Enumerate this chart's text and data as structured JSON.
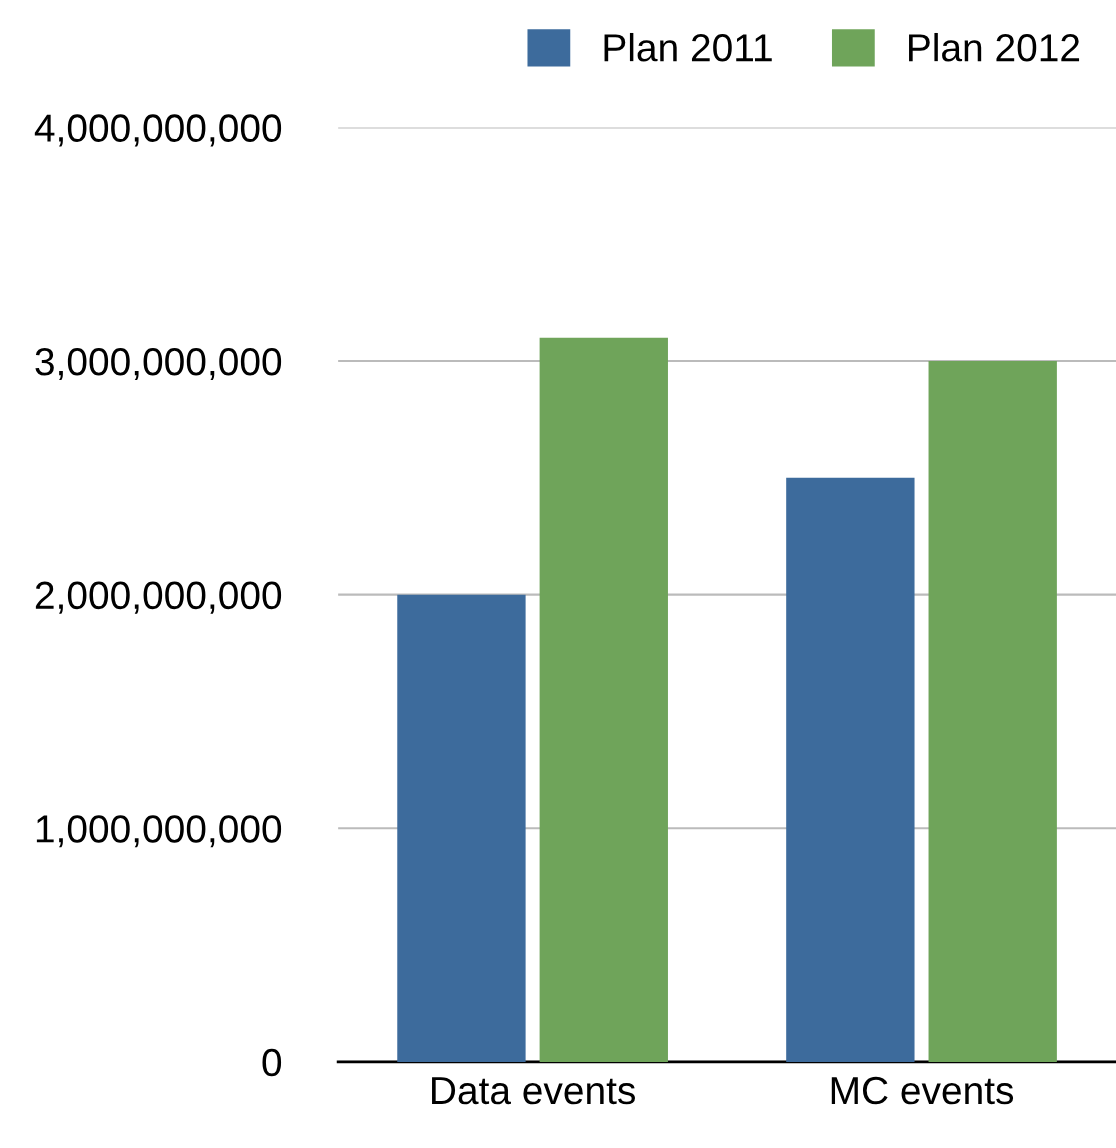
{
  "chart_data": {
    "type": "bar",
    "categories": [
      "Data events",
      "MC events"
    ],
    "series": [
      {
        "name": "Plan 2011",
        "color": "#3d6b9c",
        "values": [
          2000000000,
          2500000000
        ]
      },
      {
        "name": "Plan 2012",
        "color": "#6fa45a",
        "values": [
          3100000000,
          3000000000
        ]
      }
    ],
    "ylim": [
      0,
      4000000000
    ],
    "yticks": [
      {
        "value": 0,
        "label": "0"
      },
      {
        "value": 1000000000,
        "label": "1,000,000,000"
      },
      {
        "value": 2000000000,
        "label": "2,000,000,000"
      },
      {
        "value": 3000000000,
        "label": "3,000,000,000"
      },
      {
        "value": 4000000000,
        "label": "4,000,000,000"
      }
    ],
    "grid": "y",
    "legend": "top right"
  }
}
